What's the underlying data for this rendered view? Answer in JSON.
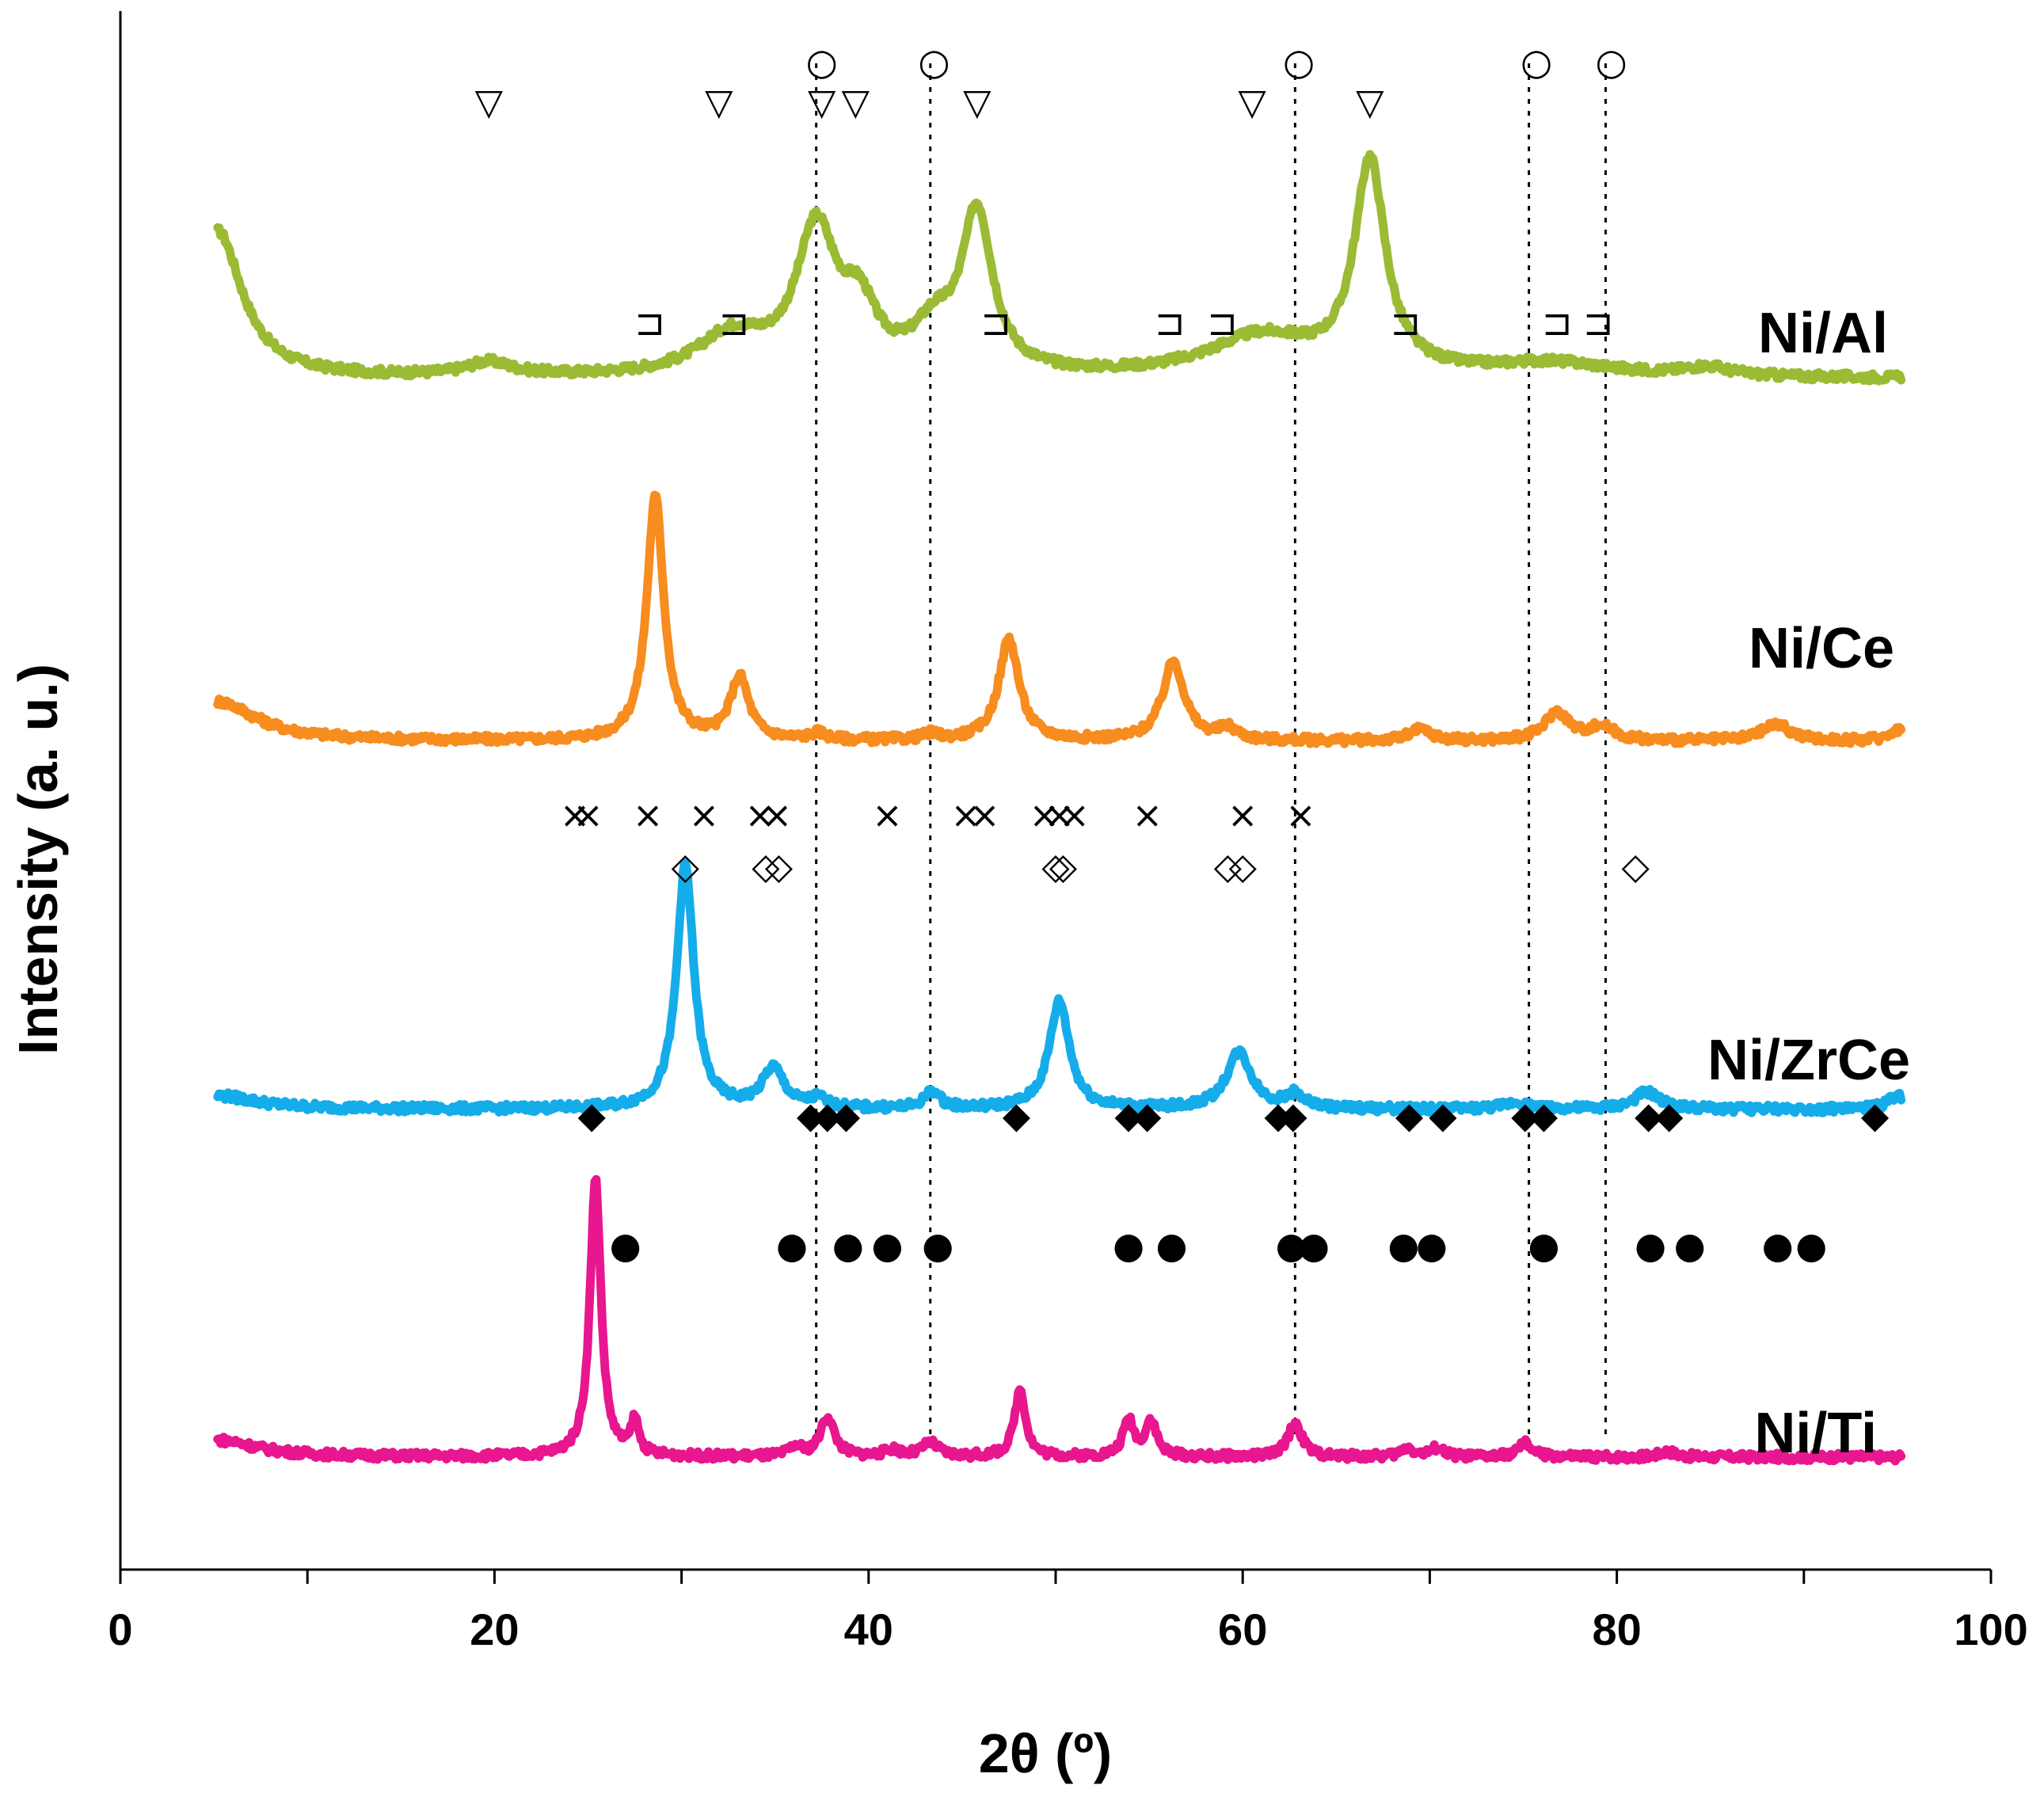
{
  "chart_data": {
    "type": "line",
    "title": "",
    "xlabel": "2θ (º)",
    "ylabel": "Intensity (a. u.)",
    "xlim": [
      0,
      100
    ],
    "x_ticks": [
      0,
      20,
      40,
      60,
      80,
      100
    ],
    "x_tick_labels": [
      "0",
      "20",
      "40",
      "60",
      "80",
      "100"
    ],
    "grid": false,
    "reference_lines_x": [
      37.2,
      43.3,
      62.8,
      75.3,
      79.4
    ],
    "series": [
      {
        "name": "Ni/Al",
        "label": "Ni/Al",
        "color": "#9BBB35",
        "offset": 0.0,
        "baseline": 0.95,
        "peaks": [
          {
            "x": 5.2,
            "h": 1.3,
            "w": 1.6
          },
          {
            "x": 19.7,
            "h": 0.12,
            "w": 1.5
          },
          {
            "x": 32.7,
            "h": 0.35,
            "w": 2.2
          },
          {
            "x": 37.2,
            "h": 1.25,
            "w": 1.3
          },
          {
            "x": 39.5,
            "h": 0.5,
            "w": 1.1
          },
          {
            "x": 43.5,
            "h": 0.35,
            "w": 1.3
          },
          {
            "x": 45.8,
            "h": 1.4,
            "w": 1.0
          },
          {
            "x": 61.0,
            "h": 0.35,
            "w": 3.5
          },
          {
            "x": 66.8,
            "h": 1.85,
            "w": 1.0
          },
          {
            "x": 76.5,
            "h": 0.12,
            "w": 4.0
          },
          {
            "x": 84.8,
            "h": 0.08,
            "w": 1.5
          }
        ]
      },
      {
        "name": "Ni/Ce",
        "label": "Ni/Ce",
        "color": "#F78C1F",
        "offset": -2.55,
        "baseline": 0.3,
        "peaks": [
          {
            "x": 5.2,
            "h": 0.35,
            "w": 2.5
          },
          {
            "x": 28.6,
            "h": 2.15,
            "w": 0.55
          },
          {
            "x": 33.1,
            "h": 0.55,
            "w": 0.6
          },
          {
            "x": 37.3,
            "h": 0.06,
            "w": 0.5
          },
          {
            "x": 43.3,
            "h": 0.05,
            "w": 0.5
          },
          {
            "x": 47.5,
            "h": 0.9,
            "w": 0.65
          },
          {
            "x": 56.3,
            "h": 0.7,
            "w": 0.7
          },
          {
            "x": 59.2,
            "h": 0.1,
            "w": 0.6
          },
          {
            "x": 69.5,
            "h": 0.1,
            "w": 0.7
          },
          {
            "x": 76.8,
            "h": 0.25,
            "w": 0.8
          },
          {
            "x": 79.2,
            "h": 0.12,
            "w": 0.8
          },
          {
            "x": 88.5,
            "h": 0.15,
            "w": 0.9
          },
          {
            "x": 95.0,
            "h": 0.1,
            "w": 0.6
          }
        ]
      },
      {
        "name": "Ni/ZrCe",
        "label": "Ni/ZrCe",
        "color": "#15ACEA",
        "offset": -5.8,
        "baseline": 0.3,
        "peaks": [
          {
            "x": 5.2,
            "h": 0.12,
            "w": 2.5
          },
          {
            "x": 30.2,
            "h": 2.15,
            "w": 0.55
          },
          {
            "x": 34.9,
            "h": 0.35,
            "w": 0.7
          },
          {
            "x": 37.3,
            "h": 0.08,
            "w": 0.5
          },
          {
            "x": 43.4,
            "h": 0.15,
            "w": 0.5
          },
          {
            "x": 50.2,
            "h": 0.95,
            "w": 0.65
          },
          {
            "x": 59.8,
            "h": 0.5,
            "w": 0.8
          },
          {
            "x": 62.8,
            "h": 0.12,
            "w": 0.6
          },
          {
            "x": 74.6,
            "h": 0.06,
            "w": 0.8
          },
          {
            "x": 81.6,
            "h": 0.15,
            "w": 0.8
          },
          {
            "x": 95.0,
            "h": 0.12,
            "w": 0.6
          }
        ]
      },
      {
        "name": "Ni/Ti",
        "label": "Ni/Ti",
        "color": "#E8168F",
        "offset": -8.85,
        "baseline": 0.28,
        "peaks": [
          {
            "x": 5.2,
            "h": 0.15,
            "w": 2.5
          },
          {
            "x": 25.4,
            "h": 2.45,
            "w": 0.35
          },
          {
            "x": 27.5,
            "h": 0.3,
            "w": 0.25
          },
          {
            "x": 36.1,
            "h": 0.08,
            "w": 0.4
          },
          {
            "x": 37.8,
            "h": 0.35,
            "w": 0.45
          },
          {
            "x": 41.3,
            "h": 0.06,
            "w": 0.5
          },
          {
            "x": 43.3,
            "h": 0.12,
            "w": 0.5
          },
          {
            "x": 48.1,
            "h": 0.6,
            "w": 0.35
          },
          {
            "x": 53.9,
            "h": 0.32,
            "w": 0.35
          },
          {
            "x": 55.1,
            "h": 0.32,
            "w": 0.35
          },
          {
            "x": 62.8,
            "h": 0.3,
            "w": 0.45
          },
          {
            "x": 68.8,
            "h": 0.08,
            "w": 0.4
          },
          {
            "x": 70.4,
            "h": 0.08,
            "w": 0.4
          },
          {
            "x": 75.1,
            "h": 0.12,
            "w": 0.45
          },
          {
            "x": 82.7,
            "h": 0.05,
            "w": 0.5
          }
        ]
      }
    ],
    "phase_markers": [
      {
        "symbol": "○",
        "name": "circle-open",
        "filled": false,
        "row_y": 12.6,
        "positions": [
          37.5,
          43.5,
          63.0,
          75.7,
          79.7
        ]
      },
      {
        "symbol": "▽",
        "name": "triangle-down-open",
        "filled": false,
        "row_y": 12.25,
        "positions": [
          19.7,
          32.0,
          37.5,
          39.3,
          45.8,
          60.5,
          66.8
        ]
      },
      {
        "symbol": "⊐",
        "name": "square-open",
        "filled": false,
        "row_y": 10.3,
        "positions": [
          28.3,
          32.8,
          46.8,
          56.1,
          58.9,
          68.7,
          76.8,
          79.0
        ]
      },
      {
        "symbol": "×",
        "name": "cross",
        "filled": false,
        "row_y": 5.95,
        "positions": [
          24.3,
          25.0,
          28.2,
          31.2,
          34.2,
          35.1,
          41.0,
          45.2,
          46.2,
          49.4,
          50.2,
          51.0,
          54.9,
          60.0,
          63.1
        ]
      },
      {
        "symbol": "◇",
        "name": "diamond-open",
        "filled": false,
        "row_y": 5.5,
        "positions": [
          30.2,
          34.5,
          35.2,
          50.0,
          50.4,
          59.2,
          60.0,
          81.0
        ]
      },
      {
        "symbol": "◆",
        "name": "diamond-filled",
        "filled": true,
        "row_y": 3.3,
        "positions": [
          25.2,
          36.9,
          37.8,
          38.8,
          47.9,
          53.9,
          54.9,
          61.9,
          62.7,
          68.9,
          70.7,
          75.1,
          76.1,
          81.7,
          82.8,
          93.8
        ]
      },
      {
        "symbol": "●",
        "name": "circle-filled",
        "filled": true,
        "row_y": 2.15,
        "positions": [
          27.0,
          35.9,
          38.9,
          41.0,
          43.7,
          53.9,
          56.2,
          62.6,
          63.8,
          68.6,
          70.1,
          76.1,
          81.8,
          83.9,
          88.6,
          90.4
        ]
      }
    ]
  }
}
